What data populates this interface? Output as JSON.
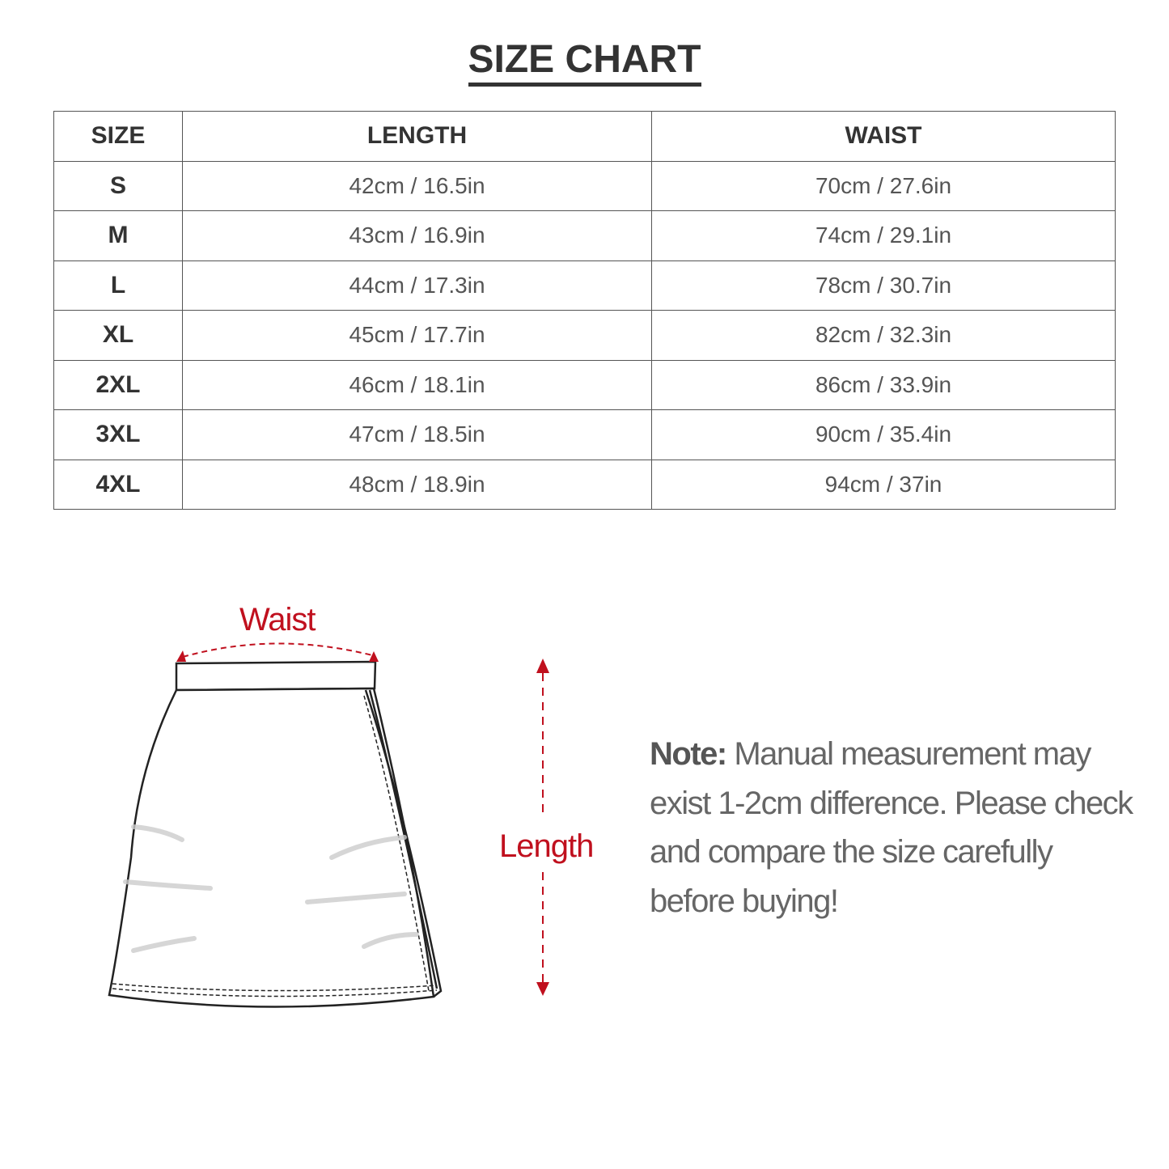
{
  "title": "SIZE CHART",
  "table": {
    "headers": [
      "SIZE",
      "LENGTH",
      "WAIST"
    ],
    "rows": [
      {
        "size": "S",
        "length": "42cm / 16.5in",
        "waist": "70cm / 27.6in"
      },
      {
        "size": "M",
        "length": "43cm / 16.9in",
        "waist": "74cm / 29.1in"
      },
      {
        "size": "L",
        "length": "44cm / 17.3in",
        "waist": "78cm / 30.7in"
      },
      {
        "size": "XL",
        "length": "45cm / 17.7in",
        "waist": "82cm / 32.3in"
      },
      {
        "size": "2XL",
        "length": "46cm / 18.1in",
        "waist": "86cm / 33.9in"
      },
      {
        "size": "3XL",
        "length": "47cm / 18.5in",
        "waist": "90cm / 35.4in"
      },
      {
        "size": "4XL",
        "length": "48cm / 18.9in",
        "waist": "94cm / 37in"
      }
    ]
  },
  "diagram": {
    "waist_label": "Waist",
    "length_label": "Length",
    "accent_color": "#c0101e"
  },
  "note": {
    "label": "Note:",
    "text": " Manual measurement may exist 1-2cm difference. Please check and compare the size carefully before buying!"
  }
}
